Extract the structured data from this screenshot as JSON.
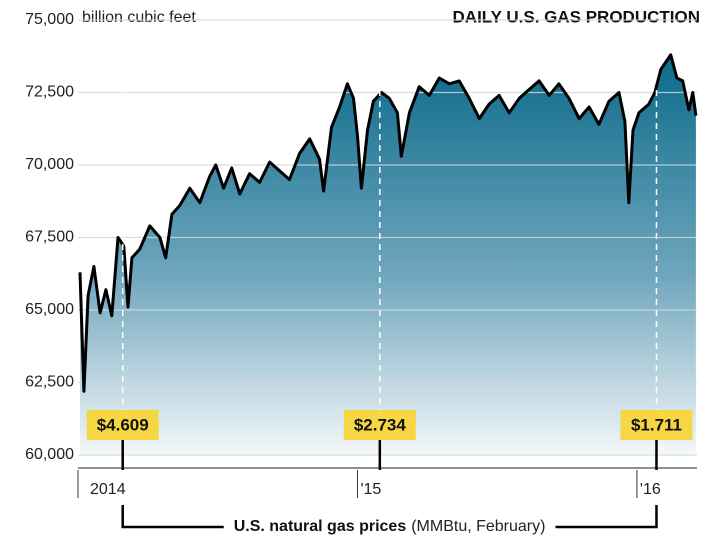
{
  "chart_data": {
    "type": "area",
    "title": "DAILY U.S. GAS PRODUCTION",
    "y_unit": "billion cubic feet",
    "color": "#0b6a8a",
    "grid": true,
    "x": [
      2014.007,
      2014.021,
      2014.036,
      2014.057,
      2014.079,
      2014.1,
      2014.121,
      2014.143,
      2014.164,
      2014.179,
      2014.193,
      2014.221,
      2014.257,
      2014.293,
      2014.314,
      2014.336,
      2014.364,
      2014.4,
      2014.436,
      2014.471,
      2014.493,
      2014.521,
      2014.55,
      2014.579,
      2014.614,
      2014.65,
      2014.686,
      2014.721,
      2014.757,
      2014.793,
      2014.829,
      2014.864,
      2014.879,
      2014.907,
      2014.936,
      2014.964,
      2014.986,
      2015.0,
      2015.014,
      2015.036,
      2015.057,
      2015.086,
      2015.114,
      2015.143,
      2015.157,
      2015.186,
      2015.221,
      2015.257,
      2015.293,
      2015.329,
      2015.364,
      2015.4,
      2015.436,
      2015.471,
      2015.507,
      2015.543,
      2015.579,
      2015.614,
      2015.65,
      2015.686,
      2015.721,
      2015.757,
      2015.793,
      2015.829,
      2015.864,
      2015.9,
      2015.936,
      2015.957,
      2015.971,
      2015.986,
      2016.007,
      2016.043,
      2016.064,
      2016.086,
      2016.107,
      2016.121,
      2016.143,
      2016.164,
      2016.186,
      2016.2,
      2016.211
    ],
    "series": [
      {
        "name": "Daily U.S. gas production",
        "color": "#0b6a8a",
        "values": [
          66300,
          62200,
          65500,
          66500,
          64900,
          65700,
          64800,
          67500,
          67200,
          65100,
          66800,
          67100,
          67900,
          67500,
          66800,
          68300,
          68600,
          69200,
          68700,
          69600,
          70000,
          69200,
          69900,
          69000,
          69700,
          69400,
          70100,
          69800,
          69500,
          70400,
          70900,
          70200,
          69100,
          71300,
          72000,
          72800,
          72300,
          71000,
          69200,
          71200,
          72200,
          72500,
          72300,
          71800,
          70300,
          71800,
          72700,
          72400,
          73000,
          72800,
          72900,
          72300,
          71600,
          72100,
          72400,
          71800,
          72300,
          72600,
          72900,
          72400,
          72800,
          72300,
          71600,
          72000,
          71400,
          72200,
          72500,
          71500,
          68700,
          71200,
          71800,
          72100,
          72500,
          73300,
          73600,
          73800,
          73000,
          72900,
          71900,
          72500,
          71700
        ]
      }
    ],
    "xlim": [
      2014.0,
      2016.215
    ],
    "ylim": [
      60000,
      75000
    ],
    "xticks": [
      {
        "value": 2014,
        "label": "2014"
      },
      {
        "value": 2015,
        "label": "'15"
      },
      {
        "value": 2016,
        "label": "'16"
      }
    ],
    "yticks": [
      {
        "value": 60000,
        "label": "60,000"
      },
      {
        "value": 62500,
        "label": "62,500"
      },
      {
        "value": 65000,
        "label": "65,000"
      },
      {
        "value": 67500,
        "label": "67,500"
      },
      {
        "value": 70000,
        "label": "70,000"
      },
      {
        "value": 72500,
        "label": "72,500"
      },
      {
        "value": 75000,
        "label": "75,000"
      }
    ],
    "prices": {
      "name": "U.S. natural gas prices",
      "unit": "(MMBtu, February)",
      "x": [
        2014.16,
        2015.08,
        2016.07
      ],
      "values": [
        4.609,
        2.734,
        1.711
      ],
      "value_labels": [
        "$4.609",
        "$2.734",
        "$1.711"
      ]
    }
  }
}
